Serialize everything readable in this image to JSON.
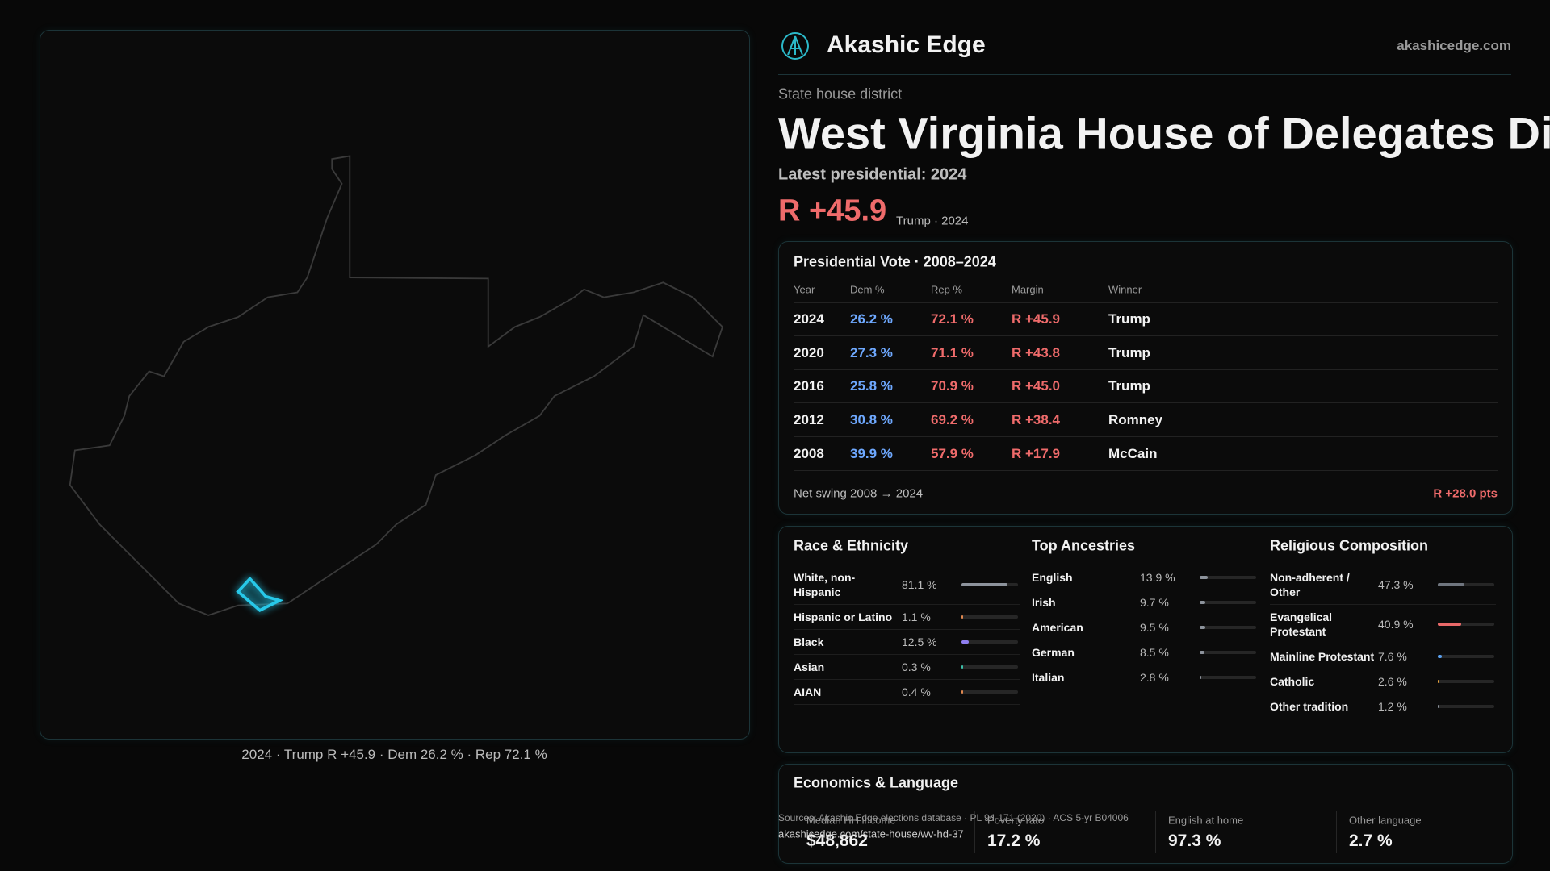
{
  "header": {
    "brand": "Akashic Edge",
    "domain": "akashicedge.com"
  },
  "map": {
    "caption": "2024 · Trump R +45.9 · Dem 26.2 % · Rep 72.1 %"
  },
  "district": {
    "kind": "State house district",
    "title": "West Virginia House of Delegates Distr",
    "latest": "Latest presidential: 2024",
    "margin": "R +45.9",
    "margin_note": "Trump · 2024"
  },
  "presidential": {
    "title": "Presidential Vote · 2008–2024",
    "columns": [
      "Year",
      "Dem %",
      "Rep %",
      "Margin",
      "Winner"
    ],
    "rows": [
      [
        "2024",
        "26.2 %",
        "72.1 %",
        "R +45.9",
        "Trump"
      ],
      [
        "2020",
        "27.3 %",
        "71.1 %",
        "R +43.8",
        "Trump"
      ],
      [
        "2016",
        "25.8 %",
        "70.9 %",
        "R +45.0",
        "Trump"
      ],
      [
        "2012",
        "30.8 %",
        "69.2 %",
        "R +38.4",
        "Romney"
      ],
      [
        "2008",
        "39.9 %",
        "57.9 %",
        "R +17.9",
        "McCain"
      ]
    ],
    "swing_label": "Net swing 2008 → 2024",
    "swing_value": "R +28.0 pts"
  },
  "race": {
    "title": "Race & Ethnicity",
    "items": [
      {
        "label": "White, non-Hispanic",
        "value": 81.1,
        "value_label": "81.1 %",
        "color": "#8d939c"
      },
      {
        "label": "Hispanic or Latino",
        "value": 1.1,
        "value_label": "1.1 %",
        "color": "#e0874f"
      },
      {
        "label": "Black",
        "value": 12.5,
        "value_label": "12.5 %",
        "color": "#8f7ff0"
      },
      {
        "label": "Asian",
        "value": 0.3,
        "value_label": "0.3 %",
        "color": "#3bbfa8"
      },
      {
        "label": "AIAN",
        "value": 0.4,
        "value_label": "0.4 %",
        "color": "#e0874f"
      }
    ]
  },
  "ancestry": {
    "title": "Top Ancestries",
    "items": [
      {
        "label": "English",
        "value": 13.9,
        "value_label": "13.9 %",
        "color": "#8d939c"
      },
      {
        "label": "Irish",
        "value": 9.7,
        "value_label": "9.7 %",
        "color": "#8d939c"
      },
      {
        "label": "American",
        "value": 9.5,
        "value_label": "9.5 %",
        "color": "#8d939c"
      },
      {
        "label": "German",
        "value": 8.5,
        "value_label": "8.5 %",
        "color": "#8d939c"
      },
      {
        "label": "Italian",
        "value": 2.8,
        "value_label": "2.8 %",
        "color": "#8d939c"
      }
    ]
  },
  "religion": {
    "title": "Religious Composition",
    "items": [
      {
        "label": "Non-adherent / Other",
        "value": 47.3,
        "value_label": "47.3 %",
        "color": "#6f757e"
      },
      {
        "label": "Evangelical Protestant",
        "value": 40.9,
        "value_label": "40.9 %",
        "color": "#e86868"
      },
      {
        "label": "Mainline Protestant",
        "value": 7.6,
        "value_label": "7.6 %",
        "color": "#5aa0f0"
      },
      {
        "label": "Catholic",
        "value": 2.6,
        "value_label": "2.6 %",
        "color": "#e8a23c"
      },
      {
        "label": "Other tradition",
        "value": 1.2,
        "value_label": "1.2 %",
        "color": "#8d939c"
      }
    ]
  },
  "economics": {
    "title": "Economics & Language",
    "stats": [
      {
        "label": "Median HH income",
        "value": "$48,862"
      },
      {
        "label": "Poverty rate",
        "value": "17.2 %"
      },
      {
        "label": "English at home",
        "value": "97.3 %"
      },
      {
        "label": "Other language",
        "value": "2.7 %"
      }
    ]
  },
  "footer": {
    "sources": "Sources: Akashic Edge elections database · PL 94-171 (2020) · ACS 5-yr B04006",
    "url": "akashicedge.com/state-house/wv-hd-37"
  }
}
